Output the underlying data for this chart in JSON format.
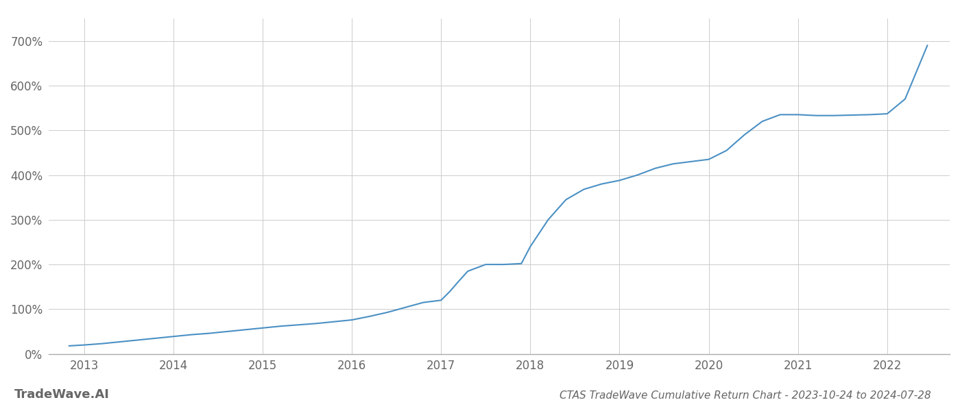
{
  "title": "CTAS TradeWave Cumulative Return Chart - 2023-10-24 to 2024-07-28",
  "watermark": "TradeWave.AI",
  "line_color": "#4a90c4",
  "background_color": "#ffffff",
  "grid_color": "#cccccc",
  "x_years": [
    2013,
    2014,
    2015,
    2016,
    2017,
    2018,
    2019,
    2020,
    2021,
    2022
  ],
  "x_values": [
    2012.83,
    2013.0,
    2013.2,
    2013.4,
    2013.6,
    2013.8,
    2014.0,
    2014.2,
    2014.4,
    2014.6,
    2014.8,
    2015.0,
    2015.2,
    2015.4,
    2015.6,
    2015.8,
    2016.0,
    2016.2,
    2016.4,
    2016.6,
    2016.8,
    2017.0,
    2017.1,
    2017.2,
    2017.3,
    2017.5,
    2017.7,
    2017.9,
    2018.0,
    2018.2,
    2018.4,
    2018.6,
    2018.8,
    2019.0,
    2019.2,
    2019.4,
    2019.6,
    2019.8,
    2020.0,
    2020.2,
    2020.4,
    2020.6,
    2020.8,
    2021.0,
    2021.2,
    2021.4,
    2021.6,
    2021.8,
    2022.0,
    2022.2,
    2022.45
  ],
  "y_values": [
    18,
    20,
    23,
    27,
    31,
    35,
    39,
    43,
    46,
    50,
    54,
    58,
    62,
    65,
    68,
    72,
    76,
    84,
    93,
    104,
    115,
    120,
    140,
    163,
    185,
    200,
    200,
    202,
    240,
    300,
    345,
    368,
    380,
    388,
    400,
    415,
    425,
    430,
    435,
    455,
    490,
    520,
    535,
    535,
    533,
    533,
    534,
    535,
    537,
    570,
    690
  ],
  "ylim": [
    0,
    750
  ],
  "yticks": [
    0,
    100,
    200,
    300,
    400,
    500,
    600,
    700
  ],
  "xlim": [
    2012.6,
    2022.7
  ],
  "title_fontsize": 11,
  "watermark_fontsize": 13,
  "tick_color": "#666666",
  "line_width": 1.5
}
